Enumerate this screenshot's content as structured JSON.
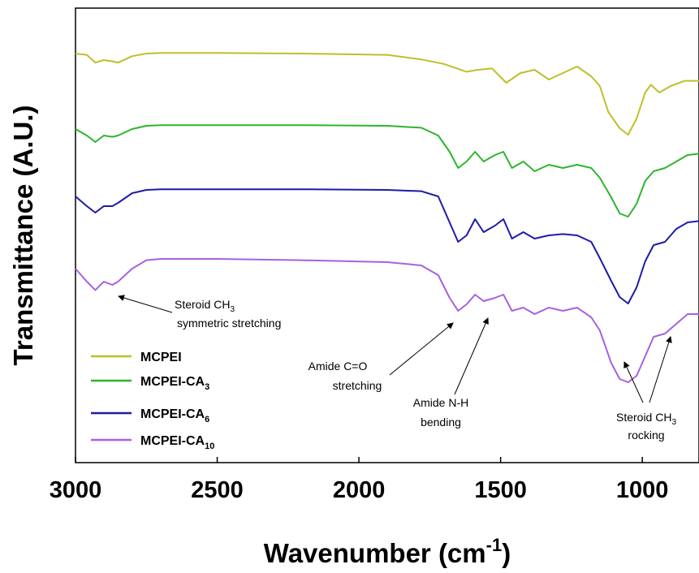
{
  "chart_data": {
    "type": "line",
    "xlabel_base": "Wavenumber (cm",
    "xlabel_sup": "-1",
    "xlabel_end": ")",
    "ylabel": "Transmittance (A.U.)",
    "xlim": [
      3000,
      800
    ],
    "x_reversed": true,
    "xticks": [
      3000,
      2500,
      2000,
      1500,
      1000
    ],
    "yticks_shown": false,
    "grid": false,
    "legend_position": "bottom-left",
    "series": [
      {
        "name": "MCPEI",
        "name_base": "MCPEI",
        "name_sub": "",
        "color": "#bfbf2a",
        "points": [
          [
            3000,
            0.2
          ],
          [
            2960,
            0.18
          ],
          [
            2930,
            0.06
          ],
          [
            2900,
            0.1
          ],
          [
            2870,
            0.08
          ],
          [
            2850,
            0.06
          ],
          [
            2800,
            0.16
          ],
          [
            2750,
            0.2
          ],
          [
            2700,
            0.21
          ],
          [
            2500,
            0.21
          ],
          [
            2200,
            0.2
          ],
          [
            1900,
            0.18
          ],
          [
            1780,
            0.11
          ],
          [
            1700,
            0.04
          ],
          [
            1620,
            -0.08
          ],
          [
            1580,
            -0.05
          ],
          [
            1530,
            -0.03
          ],
          [
            1480,
            -0.25
          ],
          [
            1430,
            -0.1
          ],
          [
            1380,
            -0.05
          ],
          [
            1330,
            -0.2
          ],
          [
            1280,
            -0.1
          ],
          [
            1230,
            0.0
          ],
          [
            1180,
            -0.15
          ],
          [
            1150,
            -0.3
          ],
          [
            1120,
            -0.7
          ],
          [
            1080,
            -0.95
          ],
          [
            1050,
            -1.05
          ],
          [
            1020,
            -0.8
          ],
          [
            990,
            -0.4
          ],
          [
            970,
            -0.28
          ],
          [
            940,
            -0.4
          ],
          [
            900,
            -0.3
          ],
          [
            850,
            -0.22
          ],
          [
            800,
            -0.22
          ]
        ]
      },
      {
        "name": "MCPEI-CA3",
        "name_base": "MCPEI-CA",
        "name_sub": "3",
        "color": "#2db52d",
        "points": [
          [
            3000,
            0.2
          ],
          [
            2960,
            0.1
          ],
          [
            2930,
            0.0
          ],
          [
            2900,
            0.1
          ],
          [
            2870,
            0.08
          ],
          [
            2850,
            0.1
          ],
          [
            2800,
            0.2
          ],
          [
            2750,
            0.25
          ],
          [
            2700,
            0.26
          ],
          [
            2500,
            0.26
          ],
          [
            2200,
            0.26
          ],
          [
            1900,
            0.25
          ],
          [
            1780,
            0.22
          ],
          [
            1720,
            0.1
          ],
          [
            1680,
            -0.15
          ],
          [
            1650,
            -0.4
          ],
          [
            1620,
            -0.3
          ],
          [
            1590,
            -0.15
          ],
          [
            1560,
            -0.3
          ],
          [
            1520,
            -0.2
          ],
          [
            1490,
            -0.15
          ],
          [
            1460,
            -0.4
          ],
          [
            1420,
            -0.3
          ],
          [
            1380,
            -0.45
          ],
          [
            1330,
            -0.35
          ],
          [
            1280,
            -0.4
          ],
          [
            1230,
            -0.35
          ],
          [
            1180,
            -0.4
          ],
          [
            1150,
            -0.55
          ],
          [
            1110,
            -0.85
          ],
          [
            1080,
            -1.1
          ],
          [
            1050,
            -1.15
          ],
          [
            1020,
            -0.95
          ],
          [
            990,
            -0.6
          ],
          [
            960,
            -0.45
          ],
          [
            920,
            -0.4
          ],
          [
            880,
            -0.3
          ],
          [
            840,
            -0.2
          ],
          [
            800,
            -0.18
          ]
        ]
      },
      {
        "name": "MCPEI-CA6",
        "name_base": "MCPEI-CA",
        "name_sub": "6",
        "color": "#1c1ca8",
        "points": [
          [
            3000,
            0.2
          ],
          [
            2960,
            0.05
          ],
          [
            2930,
            -0.05
          ],
          [
            2900,
            0.05
          ],
          [
            2870,
            0.05
          ],
          [
            2850,
            0.1
          ],
          [
            2800,
            0.25
          ],
          [
            2750,
            0.3
          ],
          [
            2700,
            0.31
          ],
          [
            2500,
            0.31
          ],
          [
            2200,
            0.31
          ],
          [
            1900,
            0.3
          ],
          [
            1780,
            0.28
          ],
          [
            1720,
            0.2
          ],
          [
            1680,
            -0.2
          ],
          [
            1650,
            -0.5
          ],
          [
            1620,
            -0.4
          ],
          [
            1590,
            -0.15
          ],
          [
            1560,
            -0.35
          ],
          [
            1520,
            -0.25
          ],
          [
            1490,
            -0.15
          ],
          [
            1460,
            -0.45
          ],
          [
            1420,
            -0.35
          ],
          [
            1380,
            -0.45
          ],
          [
            1330,
            -0.4
          ],
          [
            1280,
            -0.38
          ],
          [
            1230,
            -0.4
          ],
          [
            1180,
            -0.5
          ],
          [
            1150,
            -0.75
          ],
          [
            1110,
            -1.1
          ],
          [
            1080,
            -1.35
          ],
          [
            1050,
            -1.45
          ],
          [
            1020,
            -1.2
          ],
          [
            990,
            -0.8
          ],
          [
            960,
            -0.55
          ],
          [
            920,
            -0.5
          ],
          [
            880,
            -0.3
          ],
          [
            840,
            -0.2
          ],
          [
            800,
            -0.18
          ]
        ]
      },
      {
        "name": "MCPEI-CA10",
        "name_base": "MCPEI-CA",
        "name_sub": "10",
        "color": "#a860e0",
        "points": [
          [
            3000,
            0.15
          ],
          [
            2960,
            -0.05
          ],
          [
            2930,
            -0.18
          ],
          [
            2900,
            -0.05
          ],
          [
            2870,
            -0.1
          ],
          [
            2850,
            -0.05
          ],
          [
            2800,
            0.15
          ],
          [
            2750,
            0.28
          ],
          [
            2700,
            0.3
          ],
          [
            2500,
            0.3
          ],
          [
            2200,
            0.28
          ],
          [
            1900,
            0.25
          ],
          [
            1780,
            0.2
          ],
          [
            1720,
            0.05
          ],
          [
            1680,
            -0.3
          ],
          [
            1650,
            -0.5
          ],
          [
            1620,
            -0.4
          ],
          [
            1590,
            -0.25
          ],
          [
            1560,
            -0.35
          ],
          [
            1520,
            -0.3
          ],
          [
            1490,
            -0.25
          ],
          [
            1460,
            -0.5
          ],
          [
            1420,
            -0.45
          ],
          [
            1380,
            -0.55
          ],
          [
            1330,
            -0.45
          ],
          [
            1280,
            -0.5
          ],
          [
            1230,
            -0.45
          ],
          [
            1180,
            -0.6
          ],
          [
            1150,
            -0.8
          ],
          [
            1110,
            -1.3
          ],
          [
            1080,
            -1.55
          ],
          [
            1050,
            -1.6
          ],
          [
            1020,
            -1.5
          ],
          [
            990,
            -1.2
          ],
          [
            960,
            -0.9
          ],
          [
            920,
            -0.85
          ],
          [
            880,
            -0.7
          ],
          [
            840,
            -0.55
          ],
          [
            800,
            -0.55
          ]
        ]
      }
    ],
    "annotations": [
      {
        "lines": [
          "Steroid CH3",
          "symmetric stretching"
        ],
        "line1_base": "Steroid CH",
        "line1_sub": "3",
        "line2": "symmetric stretching"
      },
      {
        "line1": "Amide C=O",
        "line2": "stretching"
      },
      {
        "line1": "Amide N-H",
        "line2": "bending"
      },
      {
        "line1_base": "Steroid CH",
        "line1_sub": "3",
        "line2": "rocking"
      }
    ]
  }
}
